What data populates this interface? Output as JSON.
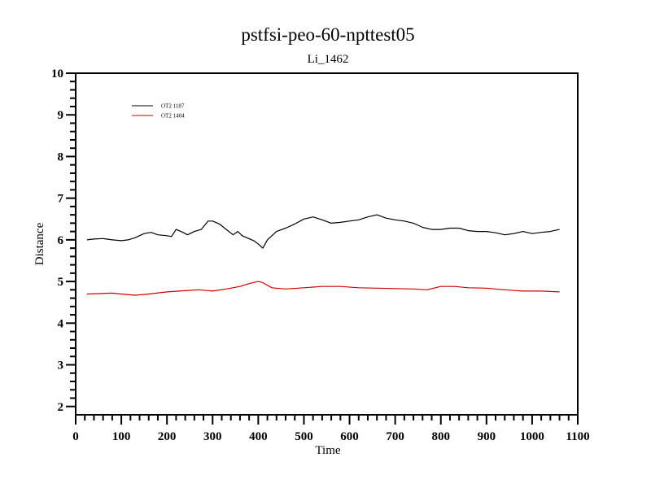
{
  "chart_data": {
    "type": "line",
    "title": "pstfsi-peo-60-npttest05",
    "subtitle": "Li_1462",
    "xlabel": "Time",
    "ylabel": "Distance",
    "xlim": [
      0,
      1100
    ],
    "ylim": [
      1.8,
      10
    ],
    "xticks": [
      0,
      100,
      200,
      300,
      400,
      500,
      600,
      700,
      800,
      900,
      1000,
      1100
    ],
    "yticks": [
      2,
      3,
      4,
      5,
      6,
      7,
      8,
      9,
      10
    ],
    "legend": "top-left",
    "grid": false,
    "series": [
      {
        "name": "OT2 1187",
        "color": "#000000",
        "x": [
          25,
          40,
          60,
          80,
          100,
          115,
          130,
          150,
          165,
          180,
          200,
          210,
          220,
          235,
          245,
          260,
          275,
          290,
          300,
          315,
          330,
          345,
          355,
          365,
          375,
          390,
          400,
          410,
          420,
          440,
          460,
          480,
          500,
          520,
          540,
          560,
          580,
          600,
          620,
          640,
          660,
          680,
          700,
          720,
          740,
          760,
          780,
          800,
          820,
          840,
          860,
          880,
          900,
          920,
          940,
          960,
          980,
          1000,
          1020,
          1040,
          1060
        ],
        "values": [
          6.0,
          6.02,
          6.03,
          6.0,
          5.98,
          6.0,
          6.05,
          6.15,
          6.18,
          6.12,
          6.1,
          6.08,
          6.25,
          6.18,
          6.12,
          6.2,
          6.25,
          6.45,
          6.45,
          6.38,
          6.25,
          6.12,
          6.2,
          6.1,
          6.05,
          5.98,
          5.9,
          5.8,
          6.0,
          6.2,
          6.28,
          6.38,
          6.5,
          6.55,
          6.48,
          6.4,
          6.42,
          6.45,
          6.48,
          6.55,
          6.6,
          6.52,
          6.48,
          6.45,
          6.4,
          6.3,
          6.25,
          6.25,
          6.28,
          6.28,
          6.22,
          6.2,
          6.2,
          6.17,
          6.12,
          6.15,
          6.2,
          6.15,
          6.18,
          6.2,
          6.25
        ]
      },
      {
        "name": "OT2 1404",
        "color": "#cc0000",
        "x": [
          25,
          50,
          80,
          100,
          130,
          160,
          200,
          240,
          270,
          300,
          330,
          360,
          380,
          400,
          410,
          430,
          460,
          500,
          540,
          580,
          620,
          660,
          700,
          740,
          770,
          800,
          830,
          860,
          900,
          940,
          980,
          1020,
          1060
        ],
        "values": [
          4.7,
          4.71,
          4.72,
          4.7,
          4.67,
          4.7,
          4.75,
          4.78,
          4.8,
          4.77,
          4.82,
          4.88,
          4.95,
          5.0,
          4.97,
          4.85,
          4.82,
          4.85,
          4.88,
          4.88,
          4.85,
          4.84,
          4.83,
          4.82,
          4.8,
          4.88,
          4.88,
          4.85,
          4.84,
          4.8,
          4.77,
          4.77,
          4.75
        ]
      }
    ]
  }
}
